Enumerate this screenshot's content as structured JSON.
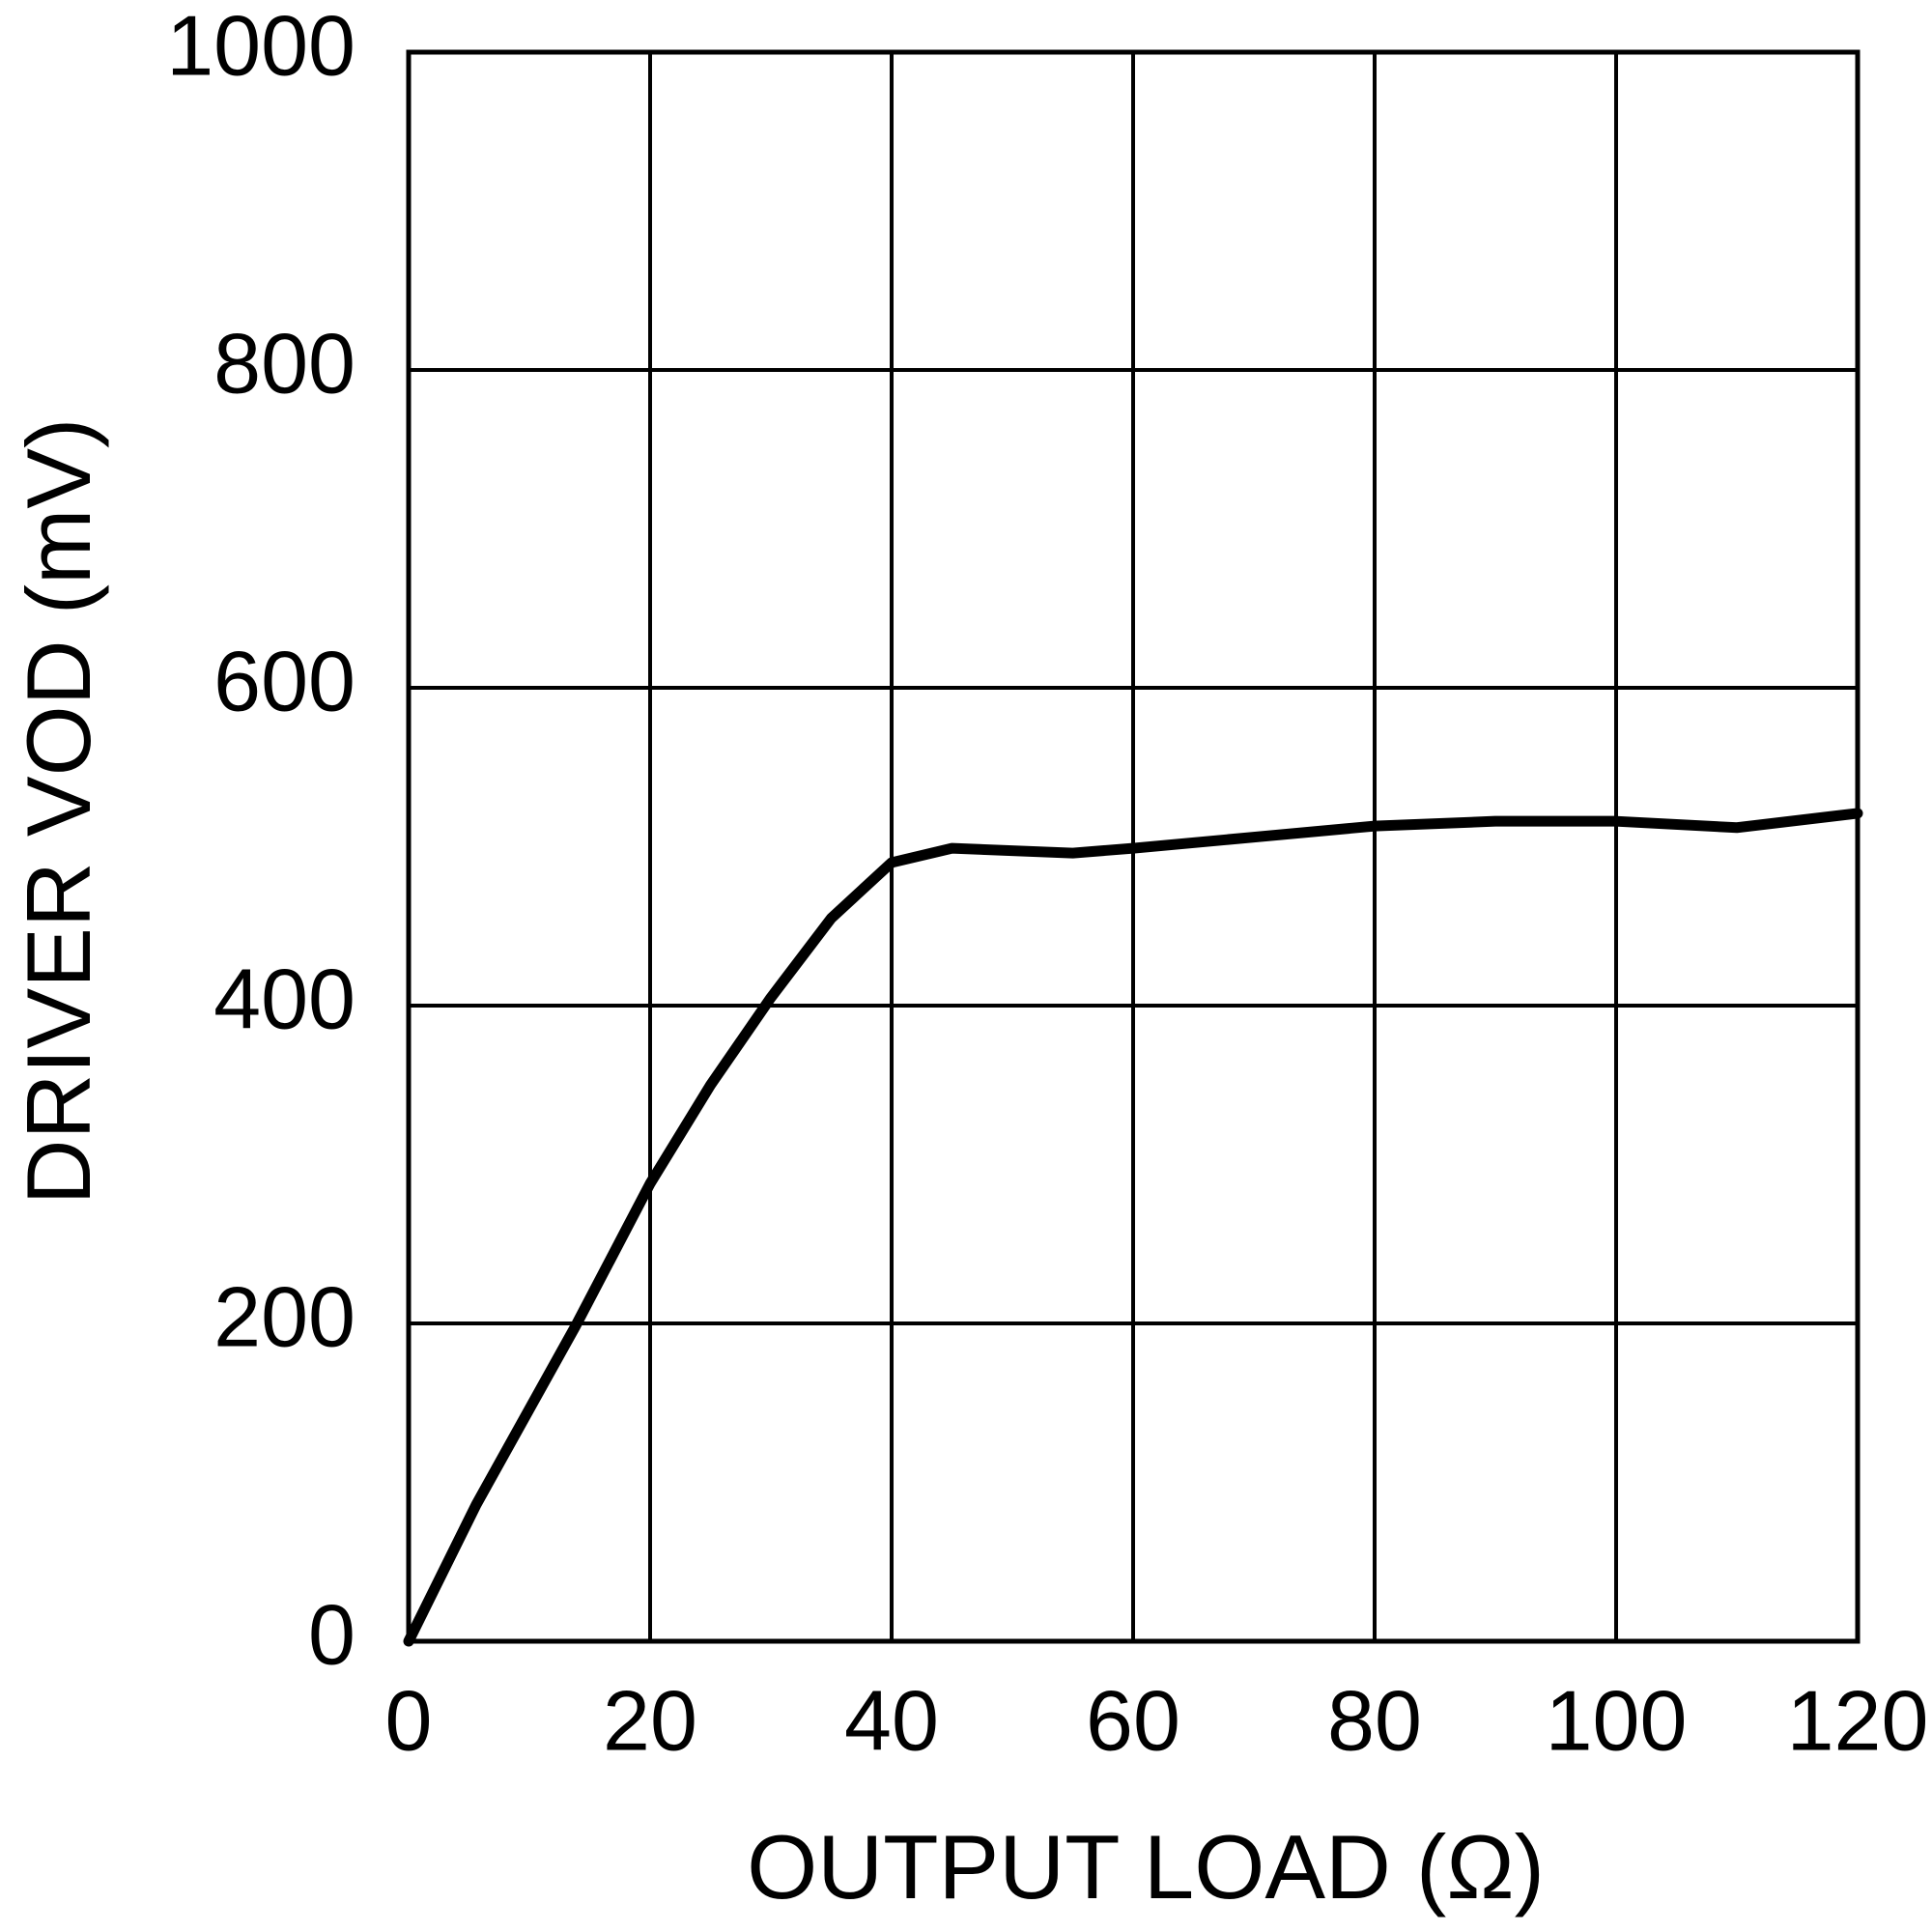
{
  "chart_data": {
    "type": "line",
    "x_label": "OUTPUT LOAD (Ω)",
    "y_label": "DRIVER VOD (mV)",
    "x": [
      0,
      5.6,
      13.8,
      20,
      25,
      30,
      35,
      40,
      45,
      55,
      60,
      70,
      80,
      90,
      100,
      110,
      120
    ],
    "values": [
      0,
      86,
      198,
      288,
      350,
      405,
      455,
      490,
      499,
      496,
      499,
      506,
      513,
      516,
      516,
      512,
      521
    ],
    "color": "#000000",
    "xlim": [
      0,
      120
    ],
    "xticks": [
      0,
      20,
      40,
      60,
      80,
      100,
      120
    ],
    "ylim": [
      0,
      1000
    ],
    "yticks": [
      0,
      200,
      400,
      600,
      800,
      1000
    ],
    "grid": true
  }
}
